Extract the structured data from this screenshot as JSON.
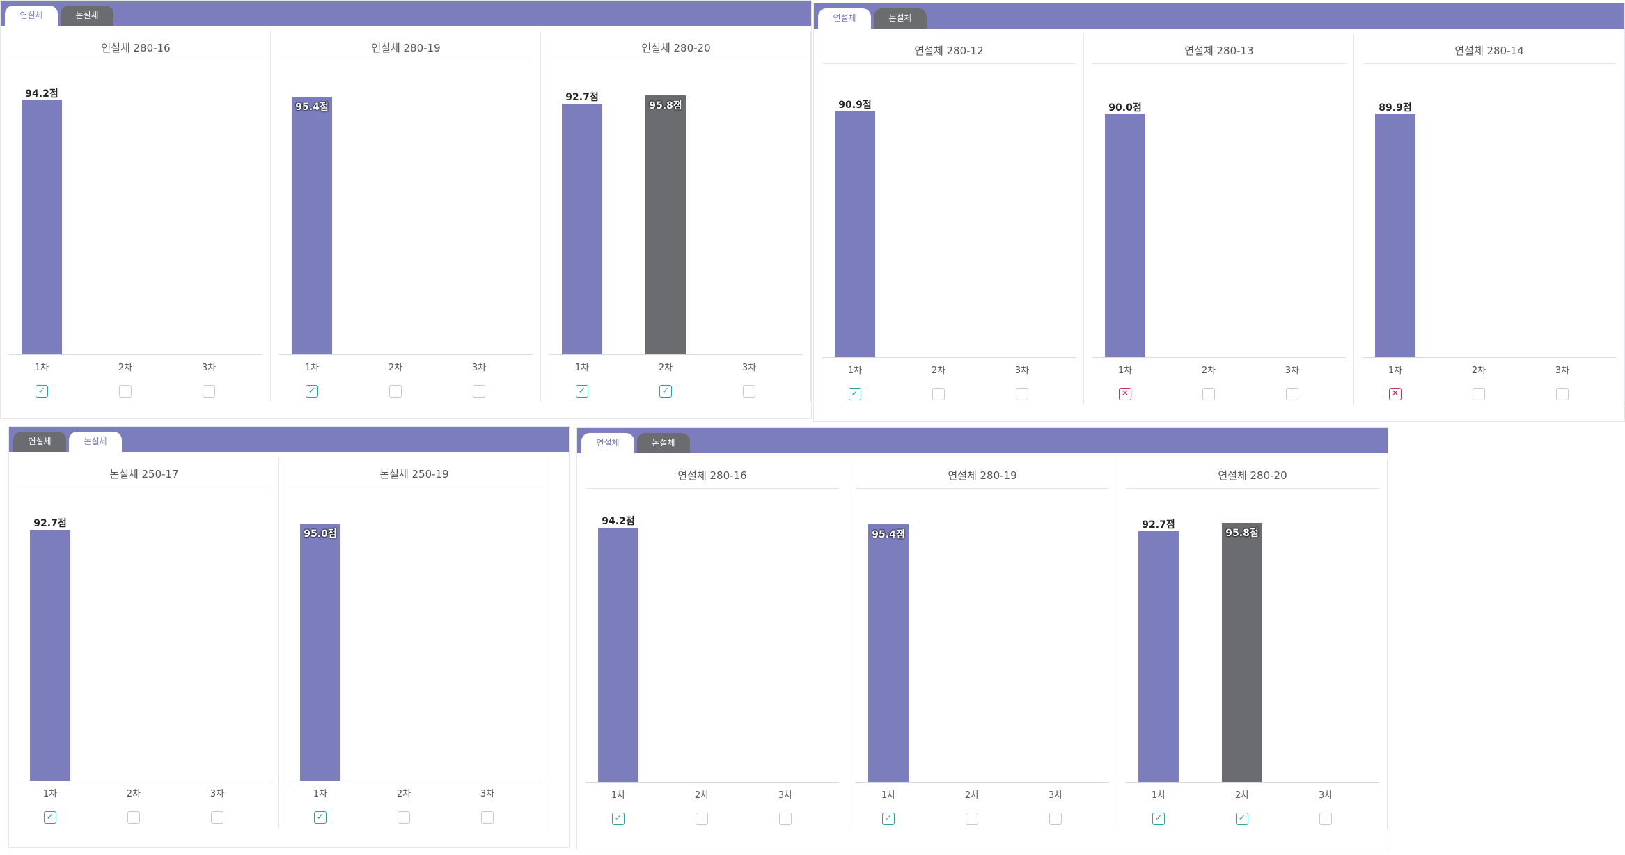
{
  "colors": {
    "tab_bar": "#7b7dbd",
    "bar_primary": "#7b7dbd",
    "bar_secondary": "#6b6c70",
    "check": "#2aa39a",
    "cross": "#c0306a"
  },
  "icons": {
    "check": "check-icon",
    "cross": "x-icon"
  },
  "glyphs": {
    "check": "✓",
    "cross": "✕"
  },
  "chart_data": [
    {
      "tabs": [
        {
          "label": "연설체",
          "active": true
        },
        {
          "label": "논설체",
          "active": false
        }
      ],
      "charts": [
        {
          "type": "bar",
          "title": "연설체 280-16",
          "categories": [
            "1차",
            "2차",
            "3차"
          ],
          "values": [
            94.2,
            null,
            null
          ],
          "labels": [
            "94.2점",
            "",
            ""
          ],
          "highlight": [
            false,
            false,
            false
          ],
          "marks": [
            "check",
            "",
            ""
          ]
        },
        {
          "type": "bar",
          "title": "연설체 280-19",
          "categories": [
            "1차",
            "2차",
            "3차"
          ],
          "values": [
            95.4,
            null,
            null
          ],
          "labels": [
            "95.4점",
            "",
            ""
          ],
          "highlight": [
            false,
            false,
            false
          ],
          "marks": [
            "check",
            "",
            ""
          ]
        },
        {
          "type": "bar",
          "title": "연설체 280-20",
          "categories": [
            "1차",
            "2차",
            "3차"
          ],
          "values": [
            92.7,
            95.8,
            null
          ],
          "labels": [
            "92.7점",
            "95.8점",
            ""
          ],
          "highlight": [
            false,
            true,
            false
          ],
          "marks": [
            "check",
            "check",
            ""
          ]
        }
      ]
    },
    {
      "tabs": [
        {
          "label": "연설체",
          "active": true
        },
        {
          "label": "논설체",
          "active": false
        }
      ],
      "charts": [
        {
          "type": "bar",
          "title": "연설체 280-12",
          "categories": [
            "1차",
            "2차",
            "3차"
          ],
          "values": [
            90.9,
            null,
            null
          ],
          "labels": [
            "90.9점",
            "",
            ""
          ],
          "highlight": [
            false,
            false,
            false
          ],
          "marks": [
            "check",
            "",
            ""
          ]
        },
        {
          "type": "bar",
          "title": "연설체 280-13",
          "categories": [
            "1차",
            "2차",
            "3차"
          ],
          "values": [
            90.0,
            null,
            null
          ],
          "labels": [
            "90.0점",
            "",
            ""
          ],
          "highlight": [
            false,
            false,
            false
          ],
          "marks": [
            "cross",
            "",
            ""
          ]
        },
        {
          "type": "bar",
          "title": "연설체 280-14",
          "categories": [
            "1차",
            "2차",
            "3차"
          ],
          "values": [
            89.9,
            null,
            null
          ],
          "labels": [
            "89.9점",
            "",
            ""
          ],
          "highlight": [
            false,
            false,
            false
          ],
          "marks": [
            "cross",
            "",
            ""
          ]
        }
      ]
    },
    {
      "tabs": [
        {
          "label": "연설체",
          "active": false
        },
        {
          "label": "논설체",
          "active": true
        }
      ],
      "charts": [
        {
          "type": "bar",
          "title": "논설체 250-17",
          "categories": [
            "1차",
            "2차",
            "3차"
          ],
          "values": [
            92.7,
            null,
            null
          ],
          "labels": [
            "92.7점",
            "",
            ""
          ],
          "highlight": [
            false,
            false,
            false
          ],
          "marks": [
            "check",
            "",
            ""
          ]
        },
        {
          "type": "bar",
          "title": "논설체 250-19",
          "categories": [
            "1차",
            "2차",
            "3차"
          ],
          "values": [
            95.0,
            null,
            null
          ],
          "labels": [
            "95.0점",
            "",
            ""
          ],
          "highlight": [
            false,
            false,
            false
          ],
          "marks": [
            "check",
            "",
            ""
          ]
        }
      ]
    },
    {
      "tabs": [
        {
          "label": "연설체",
          "active": true
        },
        {
          "label": "논설체",
          "active": false
        }
      ],
      "charts": [
        {
          "type": "bar",
          "title": "연설체 280-16",
          "categories": [
            "1차",
            "2차",
            "3차"
          ],
          "values": [
            94.2,
            null,
            null
          ],
          "labels": [
            "94.2점",
            "",
            ""
          ],
          "highlight": [
            false,
            false,
            false
          ],
          "marks": [
            "check",
            "",
            ""
          ]
        },
        {
          "type": "bar",
          "title": "연설체 280-19",
          "categories": [
            "1차",
            "2차",
            "3차"
          ],
          "values": [
            95.4,
            null,
            null
          ],
          "labels": [
            "95.4점",
            "",
            ""
          ],
          "highlight": [
            false,
            false,
            false
          ],
          "marks": [
            "check",
            "",
            ""
          ]
        },
        {
          "type": "bar",
          "title": "연설체 280-20",
          "categories": [
            "1차",
            "2차",
            "3차"
          ],
          "values": [
            92.7,
            95.8,
            null
          ],
          "labels": [
            "92.7점",
            "95.8점",
            ""
          ],
          "highlight": [
            false,
            true,
            false
          ],
          "marks": [
            "check",
            "check",
            ""
          ]
        }
      ]
    }
  ]
}
